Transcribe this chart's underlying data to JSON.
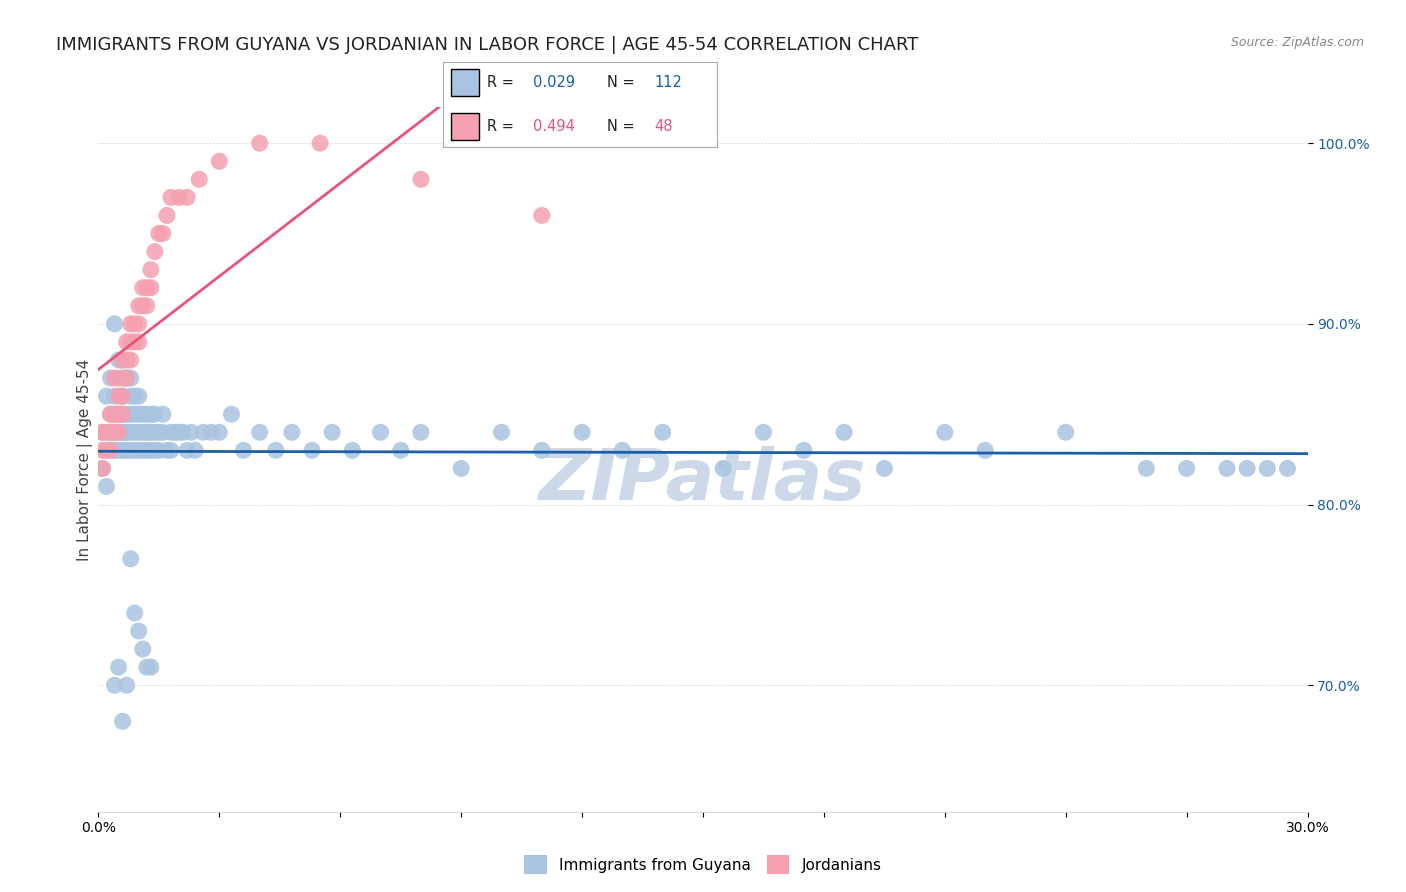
{
  "title": "IMMIGRANTS FROM GUYANA VS JORDANIAN IN LABOR FORCE | AGE 45-54 CORRELATION CHART",
  "source_text": "Source: ZipAtlas.com",
  "ylabel": "In Labor Force | Age 45-54",
  "xlabel": "",
  "xlim": [
    0.0,
    0.3
  ],
  "ylim": [
    0.63,
    1.02
  ],
  "yticks": [
    0.7,
    0.8,
    0.9,
    1.0
  ],
  "ytick_labels": [
    "70.0%",
    "80.0%",
    "90.0%",
    "100.0%"
  ],
  "xticks": [
    0.0,
    0.03,
    0.06,
    0.09,
    0.12,
    0.15,
    0.18,
    0.21,
    0.24,
    0.27,
    0.3
  ],
  "xtick_labels": [
    "0.0%",
    "",
    "",
    "",
    "",
    "",
    "",
    "",
    "",
    "",
    "30.0%"
  ],
  "legend_labels": [
    "Immigrants from Guyana",
    "Jordanians"
  ],
  "legend_r_guyana": "0.029",
  "legend_n_guyana": "112",
  "legend_r_jordan": "0.494",
  "legend_n_jordan": "48",
  "color_guyana": "#a8c4e0",
  "color_jordan": "#f4a0b0",
  "line_color_guyana": "#1a5fa8",
  "line_color_jordan": "#e8557a",
  "watermark_text": "ZIPatlas",
  "watermark_color": "#cdd8e8",
  "background_color": "#ffffff",
  "title_fontsize": 13,
  "axis_label_fontsize": 11,
  "tick_fontsize": 10,
  "guyana_x": [
    0.001,
    0.001,
    0.002,
    0.002,
    0.003,
    0.003,
    0.003,
    0.003,
    0.004,
    0.004,
    0.004,
    0.004,
    0.004,
    0.005,
    0.005,
    0.005,
    0.005,
    0.005,
    0.006,
    0.006,
    0.006,
    0.006,
    0.006,
    0.006,
    0.007,
    0.007,
    0.007,
    0.007,
    0.007,
    0.008,
    0.008,
    0.008,
    0.008,
    0.008,
    0.009,
    0.009,
    0.009,
    0.009,
    0.01,
    0.01,
    0.01,
    0.01,
    0.011,
    0.011,
    0.011,
    0.012,
    0.012,
    0.012,
    0.012,
    0.013,
    0.013,
    0.013,
    0.014,
    0.014,
    0.014,
    0.015,
    0.015,
    0.016,
    0.016,
    0.017,
    0.018,
    0.018,
    0.019,
    0.02,
    0.021,
    0.022,
    0.023,
    0.024,
    0.026,
    0.028,
    0.03,
    0.033,
    0.036,
    0.04,
    0.044,
    0.048,
    0.053,
    0.058,
    0.063,
    0.07,
    0.075,
    0.08,
    0.09,
    0.1,
    0.11,
    0.12,
    0.13,
    0.14,
    0.155,
    0.165,
    0.175,
    0.185,
    0.195,
    0.21,
    0.22,
    0.24,
    0.26,
    0.27,
    0.28,
    0.285,
    0.29,
    0.295,
    0.008,
    0.009,
    0.01,
    0.011,
    0.012,
    0.013,
    0.007,
    0.006,
    0.005,
    0.004
  ],
  "guyana_y": [
    0.82,
    0.84,
    0.86,
    0.81,
    0.87,
    0.83,
    0.85,
    0.84,
    0.9,
    0.86,
    0.85,
    0.84,
    0.83,
    0.84,
    0.88,
    0.83,
    0.85,
    0.84,
    0.88,
    0.86,
    0.87,
    0.85,
    0.84,
    0.83,
    0.85,
    0.84,
    0.87,
    0.83,
    0.84,
    0.87,
    0.86,
    0.84,
    0.85,
    0.83,
    0.86,
    0.85,
    0.84,
    0.83,
    0.84,
    0.86,
    0.85,
    0.83,
    0.85,
    0.84,
    0.83,
    0.84,
    0.85,
    0.83,
    0.84,
    0.84,
    0.83,
    0.85,
    0.84,
    0.83,
    0.85,
    0.84,
    0.83,
    0.85,
    0.84,
    0.83,
    0.84,
    0.83,
    0.84,
    0.84,
    0.84,
    0.83,
    0.84,
    0.83,
    0.84,
    0.84,
    0.84,
    0.85,
    0.83,
    0.84,
    0.83,
    0.84,
    0.83,
    0.84,
    0.83,
    0.84,
    0.83,
    0.84,
    0.82,
    0.84,
    0.83,
    0.84,
    0.83,
    0.84,
    0.82,
    0.84,
    0.83,
    0.84,
    0.82,
    0.84,
    0.83,
    0.84,
    0.82,
    0.82,
    0.82,
    0.82,
    0.82,
    0.82,
    0.77,
    0.74,
    0.73,
    0.72,
    0.71,
    0.71,
    0.7,
    0.68,
    0.71,
    0.7
  ],
  "jordan_x": [
    0.001,
    0.001,
    0.001,
    0.002,
    0.002,
    0.003,
    0.003,
    0.003,
    0.004,
    0.004,
    0.004,
    0.005,
    0.005,
    0.005,
    0.005,
    0.006,
    0.006,
    0.006,
    0.007,
    0.007,
    0.007,
    0.008,
    0.008,
    0.008,
    0.009,
    0.009,
    0.01,
    0.01,
    0.01,
    0.011,
    0.011,
    0.012,
    0.012,
    0.013,
    0.013,
    0.014,
    0.015,
    0.016,
    0.017,
    0.018,
    0.02,
    0.022,
    0.025,
    0.03,
    0.04,
    0.055,
    0.08,
    0.11
  ],
  "jordan_y": [
    0.84,
    0.83,
    0.82,
    0.84,
    0.83,
    0.85,
    0.84,
    0.83,
    0.85,
    0.87,
    0.84,
    0.87,
    0.86,
    0.85,
    0.84,
    0.88,
    0.86,
    0.85,
    0.89,
    0.88,
    0.87,
    0.9,
    0.89,
    0.88,
    0.9,
    0.89,
    0.91,
    0.9,
    0.89,
    0.92,
    0.91,
    0.92,
    0.91,
    0.93,
    0.92,
    0.94,
    0.95,
    0.95,
    0.96,
    0.97,
    0.97,
    0.97,
    0.98,
    0.99,
    1.0,
    1.0,
    0.98,
    0.96
  ]
}
